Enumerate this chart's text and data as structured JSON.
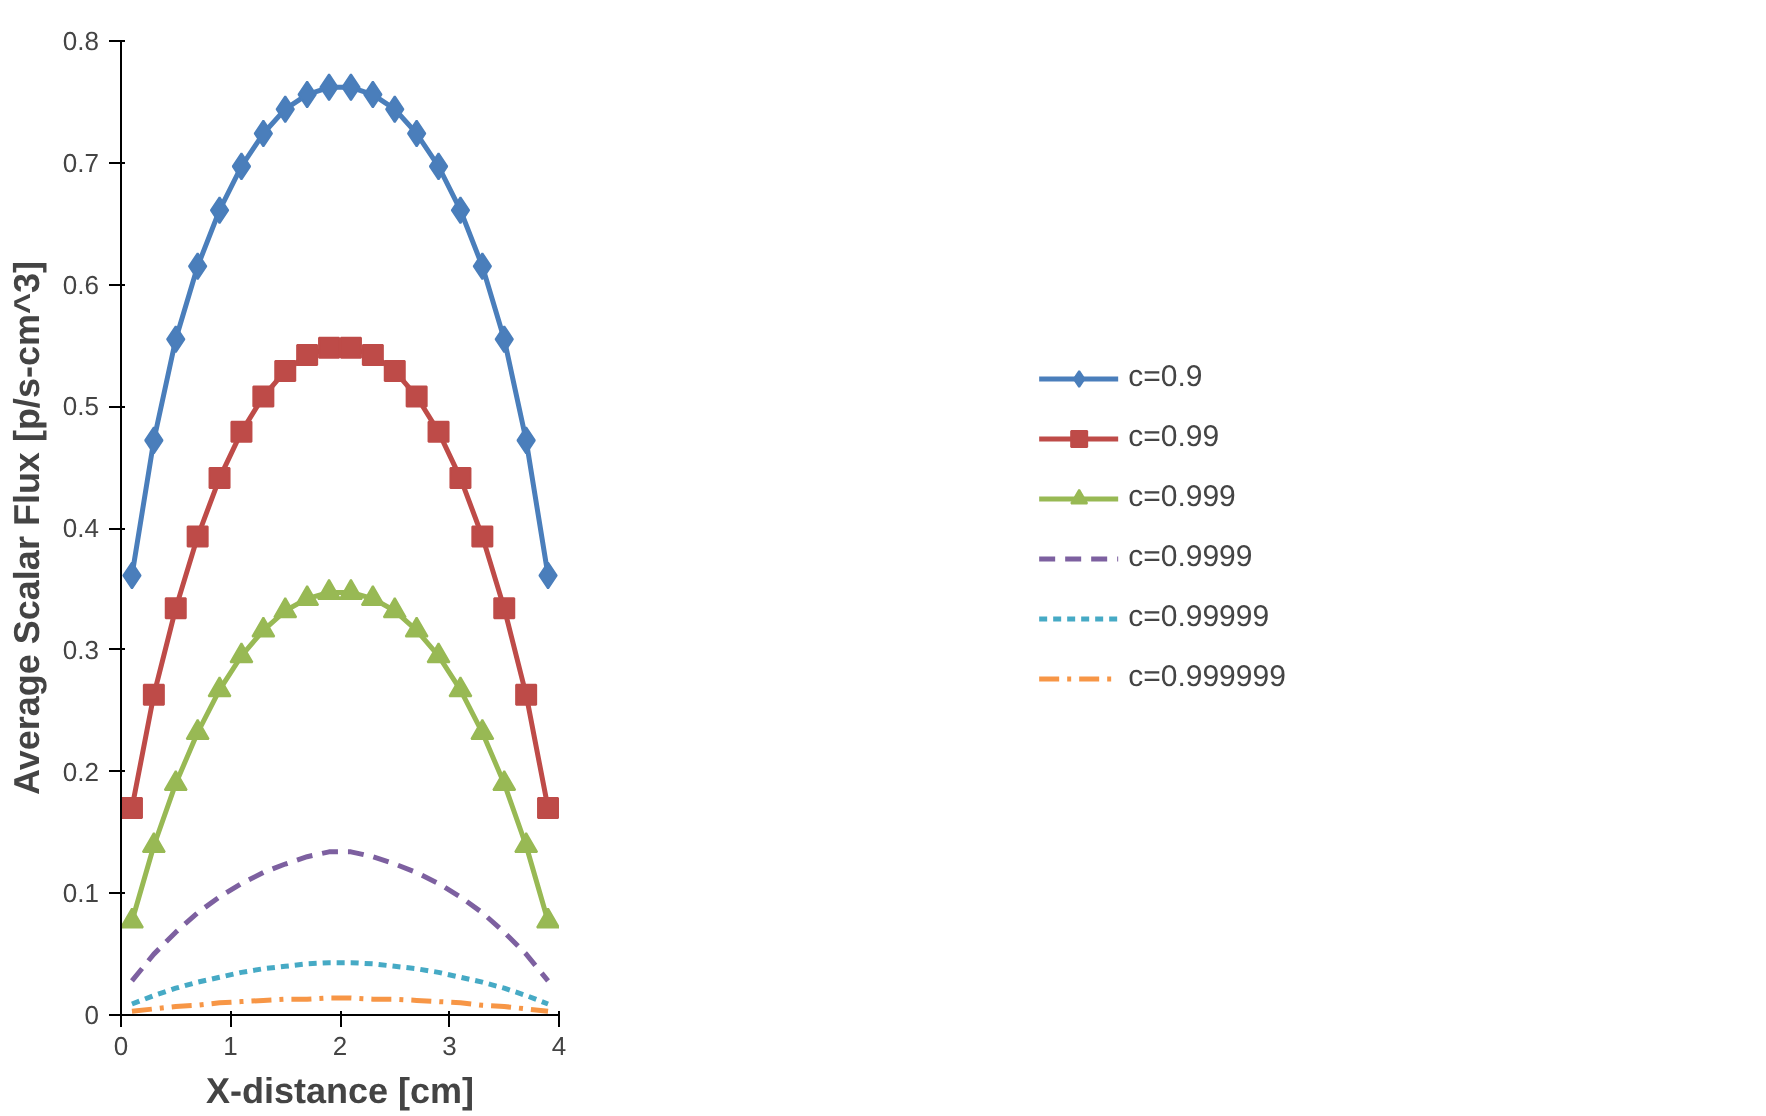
{
  "chart_data": {
    "type": "line",
    "xlabel": "X-distance [cm]",
    "ylabel": "Average Scalar Flux [p/s-cm^3]",
    "x": [
      0.1,
      0.3,
      0.5,
      0.7,
      0.9,
      1.1,
      1.3,
      1.5,
      1.7,
      1.9,
      2.1,
      2.3,
      2.5,
      2.7,
      2.9,
      3.1,
      3.3,
      3.5,
      3.7,
      3.9
    ],
    "xlim": [
      0,
      4
    ],
    "xticks": [
      0,
      1,
      2,
      3,
      4
    ],
    "ylim": [
      0,
      0.8
    ],
    "yticks": [
      0,
      0.1,
      0.2,
      0.3,
      0.4,
      0.5,
      0.6,
      0.7,
      0.8
    ],
    "grid": false,
    "legend": "right",
    "series": [
      {
        "name": "c=0.9",
        "color": "#4a7ebb",
        "marker": "diamond",
        "line_style": "solid",
        "values": [
          0.361,
          0.472,
          0.555,
          0.615,
          0.661,
          0.697,
          0.724,
          0.744,
          0.756,
          0.762,
          0.762,
          0.756,
          0.744,
          0.724,
          0.697,
          0.661,
          0.615,
          0.555,
          0.472,
          0.361
        ]
      },
      {
        "name": "c=0.99",
        "color": "#be4b48",
        "marker": "square",
        "line_style": "solid",
        "values": [
          0.17,
          0.263,
          0.334,
          0.393,
          0.441,
          0.479,
          0.508,
          0.529,
          0.542,
          0.548,
          0.548,
          0.542,
          0.529,
          0.508,
          0.479,
          0.441,
          0.393,
          0.334,
          0.263,
          0.17
        ]
      },
      {
        "name": "c=0.999",
        "color": "#98b954",
        "marker": "triangle",
        "line_style": "solid",
        "values": [
          0.077,
          0.139,
          0.19,
          0.232,
          0.267,
          0.295,
          0.316,
          0.332,
          0.342,
          0.347,
          0.347,
          0.342,
          0.332,
          0.316,
          0.295,
          0.267,
          0.232,
          0.19,
          0.139,
          0.077
        ]
      },
      {
        "name": "c=0.9999",
        "color": "#7d60a0",
        "marker": "none",
        "line_style": "dashed",
        "values": [
          0.028,
          0.05,
          0.068,
          0.084,
          0.097,
          0.108,
          0.117,
          0.124,
          0.13,
          0.134,
          0.134,
          0.13,
          0.124,
          0.117,
          0.108,
          0.097,
          0.084,
          0.068,
          0.05,
          0.028
        ]
      },
      {
        "name": "c=0.99999",
        "color": "#46aac5",
        "marker": "none",
        "line_style": "dotted",
        "values": [
          0.009,
          0.016,
          0.022,
          0.027,
          0.031,
          0.035,
          0.038,
          0.04,
          0.042,
          0.043,
          0.043,
          0.042,
          0.04,
          0.038,
          0.035,
          0.031,
          0.027,
          0.022,
          0.016,
          0.009
        ]
      },
      {
        "name": "c=0.999999",
        "color": "#f79646",
        "marker": "none",
        "line_style": "dashdot",
        "values": [
          0.003,
          0.005,
          0.007,
          0.008,
          0.01,
          0.011,
          0.012,
          0.013,
          0.013,
          0.014,
          0.014,
          0.013,
          0.013,
          0.012,
          0.011,
          0.01,
          0.008,
          0.007,
          0.005,
          0.003
        ]
      }
    ]
  }
}
